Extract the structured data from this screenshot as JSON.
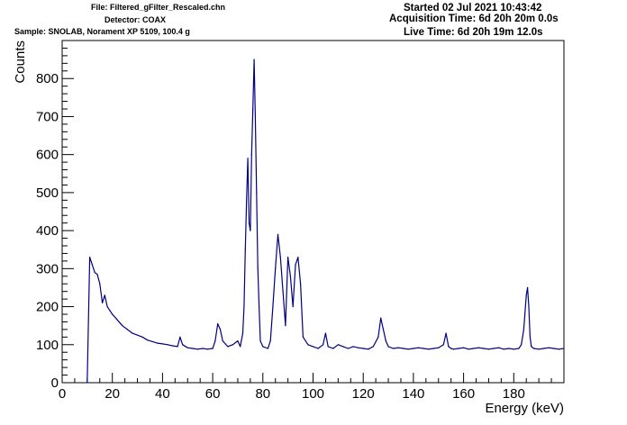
{
  "header": {
    "file": "File: Filtered_gFilter_Rescaled.chn",
    "detector": "Detector: COAX",
    "sample": "Sample: SNOLAB, Norament XP 5109, 100.4 g",
    "started": "Started 02 Jul 2021 10:43:42",
    "acquisition_time": "Acquisition Time: 6d 20h 20m 0.0s",
    "live_time": "Live Time: 6d 20h 19m 12.0s"
  },
  "chart_data": {
    "type": "line",
    "title": "",
    "xlabel": "Energy (keV)",
    "ylabel": "Counts",
    "xlim": [
      0,
      200
    ],
    "ylim": [
      0,
      900
    ],
    "xticks": [
      "0",
      "20",
      "40",
      "60",
      "80",
      "100",
      "120",
      "140",
      "160",
      "180"
    ],
    "yticks": [
      "0",
      "100",
      "200",
      "300",
      "400",
      "500",
      "600",
      "700",
      "800"
    ],
    "grid": false,
    "line_color": "#000080",
    "series": [
      {
        "x": [
          10,
          11,
          12,
          13,
          14,
          15,
          16,
          17,
          18,
          19,
          20,
          22,
          24,
          26,
          28,
          30,
          32,
          34,
          36,
          38,
          40,
          42,
          44,
          46,
          47,
          48,
          50,
          52,
          54,
          56,
          58,
          60,
          61,
          62,
          63,
          64,
          66,
          68,
          70,
          71,
          72,
          72.5,
          73,
          73.5,
          74,
          74.5,
          75,
          75.5,
          76,
          76.5,
          77,
          77.5,
          78,
          78.5,
          79,
          80,
          82,
          83,
          84,
          85,
          86,
          87,
          88,
          89,
          90,
          91,
          92,
          93,
          94,
          95,
          96,
          98,
          100,
          102,
          104,
          105,
          106,
          108,
          110,
          112,
          114,
          116,
          118,
          120,
          122,
          124,
          126,
          127,
          128,
          129,
          130,
          132,
          134,
          136,
          138,
          140,
          142,
          144,
          146,
          148,
          150,
          152,
          153,
          154,
          155,
          156,
          158,
          160,
          162,
          164,
          166,
          168,
          170,
          172,
          174,
          176,
          178,
          180,
          182,
          183,
          184,
          185,
          185.5,
          186,
          186.5,
          187,
          188,
          190,
          192,
          194,
          196,
          198,
          200
        ],
        "y": [
          0,
          330,
          310,
          290,
          285,
          260,
          210,
          230,
          200,
          190,
          180,
          165,
          150,
          140,
          130,
          125,
          120,
          112,
          108,
          104,
          102,
          100,
          97,
          95,
          120,
          100,
          92,
          90,
          88,
          90,
          88,
          90,
          110,
          155,
          140,
          110,
          95,
          100,
          110,
          95,
          130,
          200,
          350,
          480,
          590,
          420,
          400,
          600,
          720,
          850,
          700,
          500,
          300,
          200,
          110,
          95,
          90,
          110,
          200,
          300,
          390,
          330,
          240,
          150,
          330,
          280,
          200,
          310,
          330,
          260,
          120,
          100,
          95,
          90,
          100,
          130,
          95,
          90,
          100,
          95,
          90,
          95,
          92,
          90,
          88,
          95,
          120,
          170,
          140,
          110,
          95,
          90,
          92,
          90,
          88,
          90,
          92,
          90,
          88,
          90,
          92,
          100,
          130,
          95,
          90,
          88,
          90,
          92,
          88,
          90,
          92,
          90,
          88,
          90,
          92,
          88,
          90,
          88,
          90,
          100,
          140,
          230,
          250,
          200,
          120,
          95,
          90,
          88,
          90,
          92,
          90,
          88,
          90
        ]
      }
    ]
  }
}
